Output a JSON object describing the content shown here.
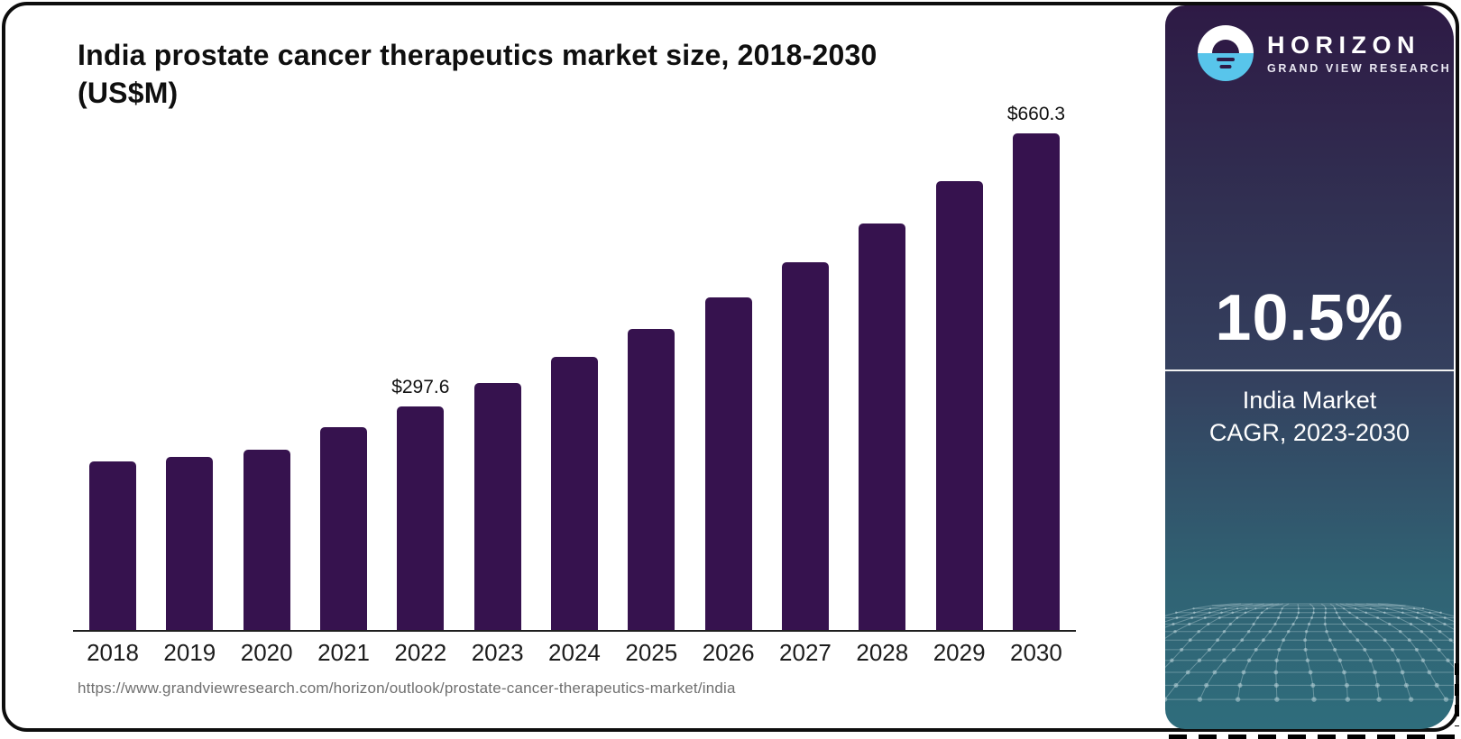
{
  "card": {
    "title_line1": "India prostate cancer therapeutics market size, 2018-2030",
    "title_line2": "(US$M)",
    "source_url": "https://www.grandviewresearch.com/horizon/outlook/prostate-cancer-therapeutics-market/india"
  },
  "chart_data": {
    "type": "bar",
    "title": "India prostate cancer therapeutics market size, 2018-2030 (US$M)",
    "categories": [
      "2018",
      "2019",
      "2020",
      "2021",
      "2022",
      "2023",
      "2024",
      "2025",
      "2026",
      "2027",
      "2028",
      "2029",
      "2030"
    ],
    "values": [
      223.9,
      229.8,
      239.4,
      269.3,
      297.6,
      328.2,
      362.7,
      400.8,
      442.9,
      489.4,
      540.8,
      597.6,
      660.3
    ],
    "annotations": [
      {
        "category": "2022",
        "label": "$297.6"
      },
      {
        "category": "2030",
        "label": "$660.3"
      }
    ],
    "xlabel": "",
    "ylabel": "",
    "ylim": [
      0,
      675
    ],
    "grid": false,
    "legend": false,
    "bar_color": "#36124E"
  },
  "sidebar": {
    "logo": {
      "brand": "HORIZON",
      "sub_brand": "GRAND VIEW RESEARCH"
    },
    "stat_value": "10.5%",
    "stat_caption_line1": "India Market",
    "stat_caption_line2": "CAGR, 2023-2030",
    "colors": {
      "gradient_top": "#2E1A45",
      "gradient_mid": "#34415F",
      "gradient_bottom": "#2F6D7C",
      "logo_blue": "#58C5EB"
    }
  }
}
